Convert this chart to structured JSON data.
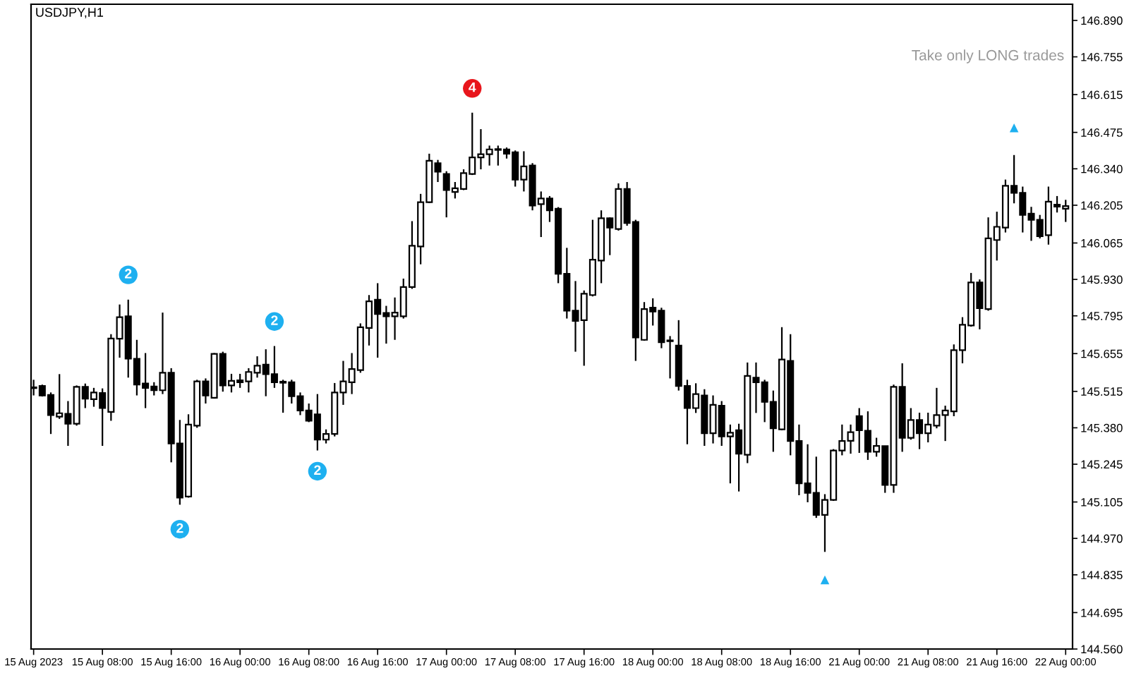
{
  "chart_data": {
    "type": "candlestick",
    "title": "USDJPY,H1",
    "annotations": [
      "Take only LONG trades"
    ],
    "categories": [
      "15 Aug 2023",
      null,
      null,
      null,
      null,
      null,
      null,
      null,
      "15 Aug 08:00",
      null,
      null,
      null,
      null,
      null,
      null,
      null,
      "15 Aug 16:00",
      null,
      null,
      null,
      null,
      null,
      null,
      null,
      "16 Aug 00:00",
      null,
      null,
      null,
      null,
      null,
      null,
      null,
      "16 Aug 08:00",
      null,
      null,
      null,
      null,
      null,
      null,
      null,
      "16 Aug 16:00",
      null,
      null,
      null,
      null,
      null,
      null,
      null,
      "17 Aug 00:00",
      null,
      null,
      null,
      null,
      null,
      null,
      null,
      "17 Aug 08:00",
      null,
      null,
      null,
      null,
      null,
      null,
      null,
      "17 Aug 16:00",
      null,
      null,
      null,
      null,
      null,
      null,
      null,
      "18 Aug 00:00",
      null,
      null,
      null,
      null,
      null,
      null,
      null,
      "18 Aug 08:00",
      null,
      null,
      null,
      null,
      null,
      null,
      null,
      "18 Aug 16:00",
      null,
      null,
      null,
      null,
      null,
      null,
      null,
      "21 Aug 00:00",
      null,
      null,
      null,
      null,
      null,
      null,
      null,
      "21 Aug 08:00",
      null,
      null,
      null,
      null,
      null,
      null,
      null,
      "21 Aug 16:00",
      null,
      null,
      null,
      null,
      null,
      null,
      null,
      "22 Aug 00:00"
    ],
    "ohlc": [
      [
        145.53,
        145.558,
        145.5,
        145.527
      ],
      [
        145.535,
        145.54,
        145.496,
        145.5
      ],
      [
        145.502,
        145.511,
        145.357,
        145.427
      ],
      [
        145.421,
        145.579,
        145.413,
        145.434
      ],
      [
        145.432,
        145.479,
        145.313,
        145.395
      ],
      [
        145.395,
        145.537,
        145.388,
        145.532
      ],
      [
        145.532,
        145.544,
        145.453,
        145.488
      ],
      [
        145.486,
        145.528,
        145.458,
        145.511
      ],
      [
        145.509,
        145.526,
        145.313,
        145.453
      ],
      [
        145.439,
        145.727,
        145.406,
        145.711
      ],
      [
        145.71,
        145.837,
        145.64,
        145.79
      ],
      [
        145.793,
        145.855,
        145.566,
        145.636
      ],
      [
        145.636,
        145.706,
        145.5,
        145.54
      ],
      [
        145.544,
        145.657,
        145.453,
        145.528
      ],
      [
        145.533,
        145.549,
        145.5,
        145.519
      ],
      [
        145.519,
        145.807,
        145.505,
        145.584
      ],
      [
        145.584,
        145.601,
        145.252,
        145.322
      ],
      [
        145.322,
        145.409,
        145.095,
        145.121
      ],
      [
        145.125,
        145.43,
        145.121,
        145.392
      ],
      [
        145.388,
        145.558,
        145.38,
        145.552
      ],
      [
        145.552,
        145.563,
        145.47,
        145.5
      ],
      [
        145.491,
        145.657,
        145.488,
        145.654
      ],
      [
        145.654,
        145.662,
        145.514,
        145.537
      ],
      [
        145.537,
        145.58,
        145.511,
        145.554
      ],
      [
        145.556,
        145.58,
        145.528,
        145.549
      ],
      [
        145.552,
        145.601,
        145.511,
        145.587
      ],
      [
        145.584,
        145.645,
        145.566,
        145.61
      ],
      [
        145.614,
        145.671,
        145.497,
        145.579
      ],
      [
        145.579,
        145.683,
        145.528,
        145.549
      ],
      [
        145.551,
        145.558,
        145.436,
        145.547
      ],
      [
        145.549,
        145.558,
        145.47,
        145.497
      ],
      [
        145.497,
        145.511,
        145.427,
        145.444
      ],
      [
        145.444,
        145.47,
        145.401,
        145.406
      ],
      [
        145.43,
        145.505,
        145.296,
        145.336
      ],
      [
        145.336,
        145.374,
        145.322,
        145.357
      ],
      [
        145.357,
        145.546,
        145.348,
        145.511
      ],
      [
        145.511,
        145.628,
        145.465,
        145.552
      ],
      [
        145.549,
        145.657,
        145.505,
        145.598
      ],
      [
        145.594,
        145.767,
        145.584,
        145.753
      ],
      [
        145.75,
        145.872,
        145.685,
        145.849
      ],
      [
        145.855,
        145.916,
        145.64,
        145.802
      ],
      [
        145.806,
        145.832,
        145.692,
        145.793
      ],
      [
        145.793,
        145.863,
        145.706,
        145.807
      ],
      [
        145.793,
        145.933,
        145.785,
        145.902
      ],
      [
        145.902,
        146.146,
        145.895,
        146.055
      ],
      [
        146.052,
        146.247,
        145.986,
        146.216
      ],
      [
        146.216,
        146.396,
        146.213,
        146.37
      ],
      [
        146.361,
        146.373,
        146.291,
        146.329
      ],
      [
        146.321,
        146.331,
        146.16,
        146.261
      ],
      [
        146.254,
        146.291,
        146.23,
        146.268
      ],
      [
        146.265,
        146.338,
        146.261,
        146.324
      ],
      [
        146.321,
        146.548,
        146.317,
        146.382
      ],
      [
        146.382,
        146.487,
        146.338,
        146.394
      ],
      [
        146.394,
        146.426,
        146.352,
        146.412
      ],
      [
        146.413,
        146.426,
        146.352,
        146.41
      ],
      [
        146.412,
        146.419,
        146.378,
        146.396
      ],
      [
        146.401,
        146.408,
        146.274,
        146.3
      ],
      [
        146.3,
        146.405,
        146.256,
        146.349
      ],
      [
        146.352,
        146.361,
        146.186,
        146.204
      ],
      [
        146.209,
        146.256,
        146.087,
        146.23
      ],
      [
        146.23,
        146.239,
        146.143,
        146.186
      ],
      [
        146.192,
        146.198,
        145.916,
        145.951
      ],
      [
        145.951,
        146.047,
        145.785,
        145.814
      ],
      [
        145.814,
        145.924,
        145.662,
        145.776
      ],
      [
        145.779,
        145.889,
        145.61,
        145.877
      ],
      [
        145.872,
        146.151,
        145.867,
        146.003
      ],
      [
        146.0,
        146.186,
        145.916,
        146.157
      ],
      [
        146.157,
        146.16,
        146.02,
        146.122
      ],
      [
        146.117,
        146.286,
        146.111,
        146.265
      ],
      [
        146.265,
        146.291,
        146.129,
        146.139
      ],
      [
        146.143,
        146.151,
        145.628,
        145.715
      ],
      [
        145.706,
        145.846,
        145.703,
        145.82
      ],
      [
        145.825,
        145.86,
        145.759,
        145.811
      ],
      [
        145.814,
        145.825,
        145.675,
        145.697
      ],
      [
        145.704,
        145.72,
        145.563,
        145.701
      ],
      [
        145.685,
        145.779,
        145.518,
        145.535
      ],
      [
        145.535,
        145.558,
        145.319,
        145.453
      ],
      [
        145.453,
        145.545,
        145.435,
        145.505
      ],
      [
        145.5,
        145.523,
        145.313,
        145.36
      ],
      [
        145.36,
        145.5,
        145.322,
        145.465
      ],
      [
        145.462,
        145.479,
        145.313,
        145.348
      ],
      [
        145.348,
        145.392,
        145.174,
        145.362
      ],
      [
        145.371,
        145.395,
        145.144,
        145.284
      ],
      [
        145.28,
        145.622,
        145.249,
        145.572
      ],
      [
        145.566,
        145.622,
        145.435,
        145.549
      ],
      [
        145.549,
        145.558,
        145.401,
        145.476
      ],
      [
        145.476,
        145.518,
        145.291,
        145.378
      ],
      [
        145.374,
        145.753,
        145.371,
        145.633
      ],
      [
        145.628,
        145.727,
        145.278,
        145.331
      ],
      [
        145.331,
        145.392,
        145.13,
        145.174
      ],
      [
        145.174,
        145.319,
        145.104,
        145.139
      ],
      [
        145.139,
        145.273,
        145.046,
        145.057
      ],
      [
        145.057,
        145.134,
        144.92,
        145.113
      ],
      [
        145.113,
        145.301,
        145.109,
        145.296
      ],
      [
        145.296,
        145.392,
        145.278,
        145.331
      ],
      [
        145.332,
        145.392,
        145.284,
        145.364
      ],
      [
        145.423,
        145.453,
        145.287,
        145.371
      ],
      [
        145.369,
        145.441,
        145.261,
        145.291
      ],
      [
        145.291,
        145.343,
        145.273,
        145.313
      ],
      [
        145.312,
        145.313,
        145.139,
        145.168
      ],
      [
        145.168,
        145.54,
        145.139,
        145.532
      ],
      [
        145.532,
        145.619,
        145.291,
        145.343
      ],
      [
        145.343,
        145.453,
        145.336,
        145.409
      ],
      [
        145.409,
        145.436,
        145.301,
        145.36
      ],
      [
        145.36,
        145.436,
        145.326,
        145.392
      ],
      [
        145.388,
        145.528,
        145.378,
        145.427
      ],
      [
        145.427,
        145.462,
        145.331,
        145.444
      ],
      [
        145.441,
        145.689,
        145.423,
        145.668
      ],
      [
        145.668,
        145.79,
        145.619,
        145.762
      ],
      [
        145.759,
        145.954,
        145.755,
        145.919
      ],
      [
        145.919,
        145.93,
        145.745,
        145.823
      ],
      [
        145.82,
        146.16,
        145.814,
        146.082
      ],
      [
        146.076,
        146.181,
        146.0,
        146.125
      ],
      [
        146.122,
        146.3,
        146.104,
        146.277
      ],
      [
        146.277,
        146.391,
        146.212,
        146.251
      ],
      [
        146.251,
        146.274,
        146.104,
        146.169
      ],
      [
        146.174,
        146.199,
        146.073,
        146.151
      ],
      [
        146.151,
        146.169,
        146.082,
        146.09
      ],
      [
        146.094,
        146.274,
        146.059,
        146.218
      ],
      [
        146.207,
        146.239,
        146.178,
        146.2
      ],
      [
        146.192,
        146.225,
        146.143,
        146.202
      ]
    ],
    "series": [
      {
        "type": "scatter",
        "name": "2",
        "marker": "circle",
        "color": "#1eb0f0",
        "values": [
          null,
          null,
          null,
          null,
          null,
          null,
          null,
          null,
          null,
          null,
          null,
          145.947,
          null,
          null,
          null,
          null,
          null,
          145.004,
          null,
          null,
          null,
          null,
          null,
          null,
          null,
          null,
          null,
          null,
          145.774,
          null,
          null,
          null,
          null,
          145.219,
          null,
          null,
          null,
          null,
          null,
          null,
          null,
          null,
          null,
          null,
          null,
          null,
          null,
          null,
          null,
          null,
          null,
          null,
          null,
          null,
          null,
          null,
          null,
          null,
          null,
          null,
          null,
          null,
          null,
          null,
          null,
          null,
          null,
          null,
          null,
          null,
          null,
          null,
          null,
          null,
          null,
          null,
          null,
          null,
          null,
          null,
          null,
          null,
          null,
          null,
          null,
          null,
          null,
          null,
          null,
          null,
          null,
          null,
          null,
          null,
          null,
          null,
          null,
          null,
          null,
          null,
          null,
          null,
          null,
          null,
          null,
          null,
          null,
          null,
          null,
          null,
          null,
          null,
          null,
          null,
          null,
          null,
          null,
          null,
          null,
          null,
          null
        ]
      },
      {
        "type": "scatter",
        "name": "4",
        "marker": "circle",
        "color": "#e8161c",
        "values": [
          null,
          null,
          null,
          null,
          null,
          null,
          null,
          null,
          null,
          null,
          null,
          null,
          null,
          null,
          null,
          null,
          null,
          null,
          null,
          null,
          null,
          null,
          null,
          null,
          null,
          null,
          null,
          null,
          null,
          null,
          null,
          null,
          null,
          null,
          null,
          null,
          null,
          null,
          null,
          null,
          null,
          null,
          null,
          null,
          null,
          null,
          null,
          null,
          null,
          null,
          null,
          146.638,
          null,
          null,
          null,
          null,
          null,
          null,
          null,
          null,
          null,
          null,
          null,
          null,
          null,
          null,
          null,
          null,
          null,
          null,
          null,
          null,
          null,
          null,
          null,
          null,
          null,
          null,
          null,
          null,
          null,
          null,
          null,
          null,
          null,
          null,
          null,
          null,
          null,
          null,
          null,
          null,
          null,
          null,
          null,
          null,
          null,
          null,
          null,
          null,
          null,
          null,
          null,
          null,
          null,
          null,
          null,
          null,
          null,
          null,
          null,
          null,
          null,
          null,
          null,
          null,
          null,
          null,
          null,
          null,
          null
        ]
      },
      {
        "type": "scatter",
        "marker": "triangle",
        "color": "#1eb0f0",
        "values": [
          null,
          null,
          null,
          null,
          null,
          null,
          null,
          null,
          null,
          null,
          null,
          null,
          null,
          null,
          null,
          null,
          null,
          null,
          null,
          null,
          null,
          null,
          null,
          null,
          null,
          null,
          null,
          null,
          null,
          null,
          null,
          null,
          null,
          null,
          null,
          null,
          null,
          null,
          null,
          null,
          null,
          null,
          null,
          null,
          null,
          null,
          null,
          null,
          null,
          null,
          null,
          null,
          null,
          null,
          null,
          null,
          null,
          null,
          null,
          null,
          null,
          null,
          null,
          null,
          null,
          null,
          null,
          null,
          null,
          null,
          null,
          null,
          null,
          null,
          null,
          null,
          null,
          null,
          null,
          null,
          null,
          null,
          null,
          null,
          null,
          null,
          null,
          null,
          null,
          null,
          null,
          null,
          144.816,
          null,
          null,
          null,
          null,
          null,
          null,
          null,
          null,
          null,
          null,
          null,
          null,
          null,
          null,
          null,
          null,
          null,
          null,
          null,
          null,
          null,
          146.492,
          null,
          null,
          null,
          null,
          null,
          null
        ]
      }
    ],
    "ylim": [
      144.56,
      146.95
    ],
    "yticks": [
      {
        "value": 144.56,
        "label": "144.560"
      },
      {
        "value": 144.695,
        "label": "144.695"
      },
      {
        "value": 144.835,
        "label": "144.835"
      },
      {
        "value": 144.97,
        "label": "144.970"
      },
      {
        "value": 145.105,
        "label": "145.105"
      },
      {
        "value": 145.245,
        "label": "145.245"
      },
      {
        "value": 145.38,
        "label": "145.380"
      },
      {
        "value": 145.515,
        "label": "145.515"
      },
      {
        "value": 145.655,
        "label": "145.655"
      },
      {
        "value": 145.795,
        "label": "145.795"
      },
      {
        "value": 145.93,
        "label": "145.930"
      },
      {
        "value": 146.065,
        "label": "146.065"
      },
      {
        "value": 146.205,
        "label": "146.205"
      },
      {
        "value": 146.34,
        "label": "146.340"
      },
      {
        "value": 146.475,
        "label": "146.475"
      },
      {
        "value": 146.615,
        "label": "146.615"
      },
      {
        "value": 146.755,
        "label": "146.755"
      },
      {
        "value": 146.89,
        "label": "146.890"
      }
    ],
    "grid": false
  }
}
